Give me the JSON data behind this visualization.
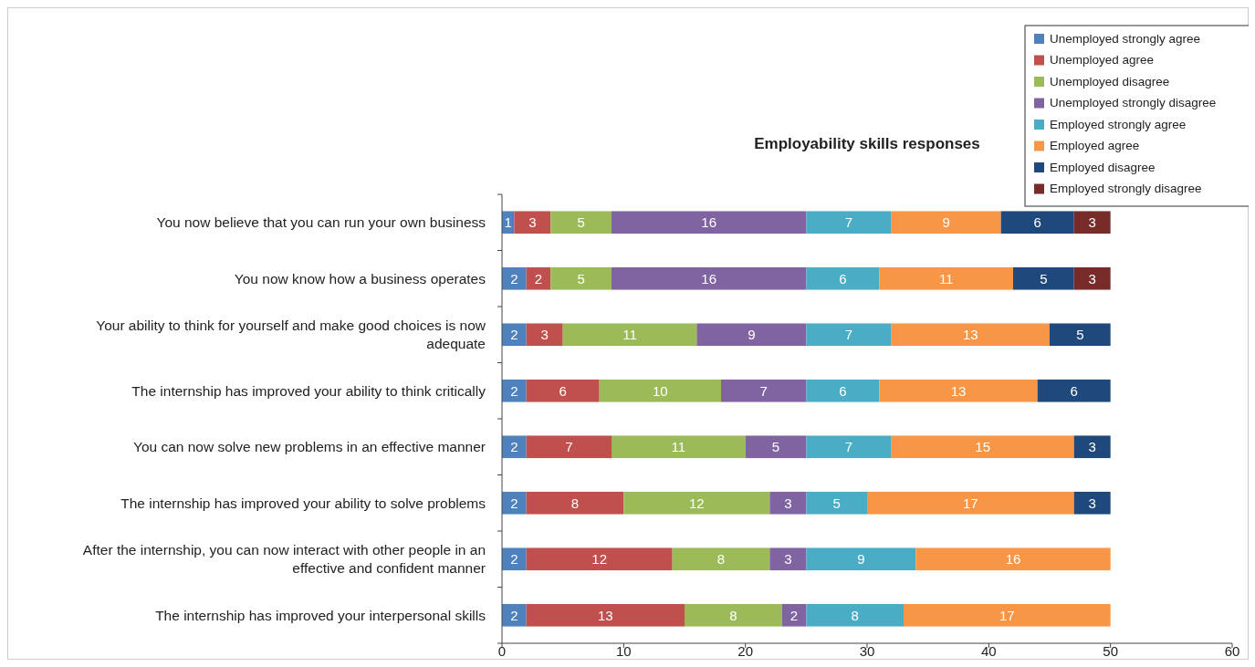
{
  "chart_data": {
    "type": "bar",
    "orientation": "horizontal",
    "stacked": true,
    "title": "Employability skills responses",
    "categories": [
      "You now believe that you can run your own business",
      "You now know how a business operates",
      "Your ability to think for yourself and make good choices is now adequate",
      "The internship has improved your ability to think critically",
      "You can now solve new problems in an effective manner",
      "The internship has improved your ability to solve problems",
      "After the internship, you can now interact with other people in an effective and confident manner",
      "The internship has improved your interpersonal skills"
    ],
    "series": [
      {
        "name": "Unemployed strongly agree",
        "color": "#4f81bd",
        "values": [
          1,
          2,
          2,
          2,
          2,
          2,
          2,
          2
        ]
      },
      {
        "name": "Unemployed agree",
        "color": "#c0504d",
        "values": [
          3,
          2,
          3,
          6,
          7,
          8,
          12,
          13
        ]
      },
      {
        "name": "Unemployed disagree",
        "color": "#9bbb59",
        "values": [
          5,
          5,
          11,
          10,
          11,
          12,
          8,
          8
        ]
      },
      {
        "name": "Unemployed strongly disagree",
        "color": "#8064a2",
        "values": [
          16,
          16,
          9,
          7,
          5,
          3,
          3,
          2
        ]
      },
      {
        "name": "Employed strongly agree",
        "color": "#4bacc6",
        "values": [
          7,
          6,
          7,
          6,
          7,
          5,
          9,
          8
        ]
      },
      {
        "name": "Employed agree",
        "color": "#f79646",
        "values": [
          9,
          11,
          13,
          13,
          15,
          17,
          16,
          17
        ]
      },
      {
        "name": "Employed disagree",
        "color": "#1f497d",
        "values": [
          6,
          5,
          5,
          6,
          3,
          3,
          null,
          null
        ]
      },
      {
        "name": "Employed strongly disagree",
        "color": "#772c2a",
        "values": [
          3,
          3,
          null,
          null,
          null,
          null,
          null,
          null
        ]
      }
    ],
    "xlim": [
      0,
      60
    ],
    "xticks": [
      0,
      10,
      20,
      30,
      40,
      50,
      60
    ],
    "data_labels": true,
    "grid": false,
    "legend": "top right"
  }
}
